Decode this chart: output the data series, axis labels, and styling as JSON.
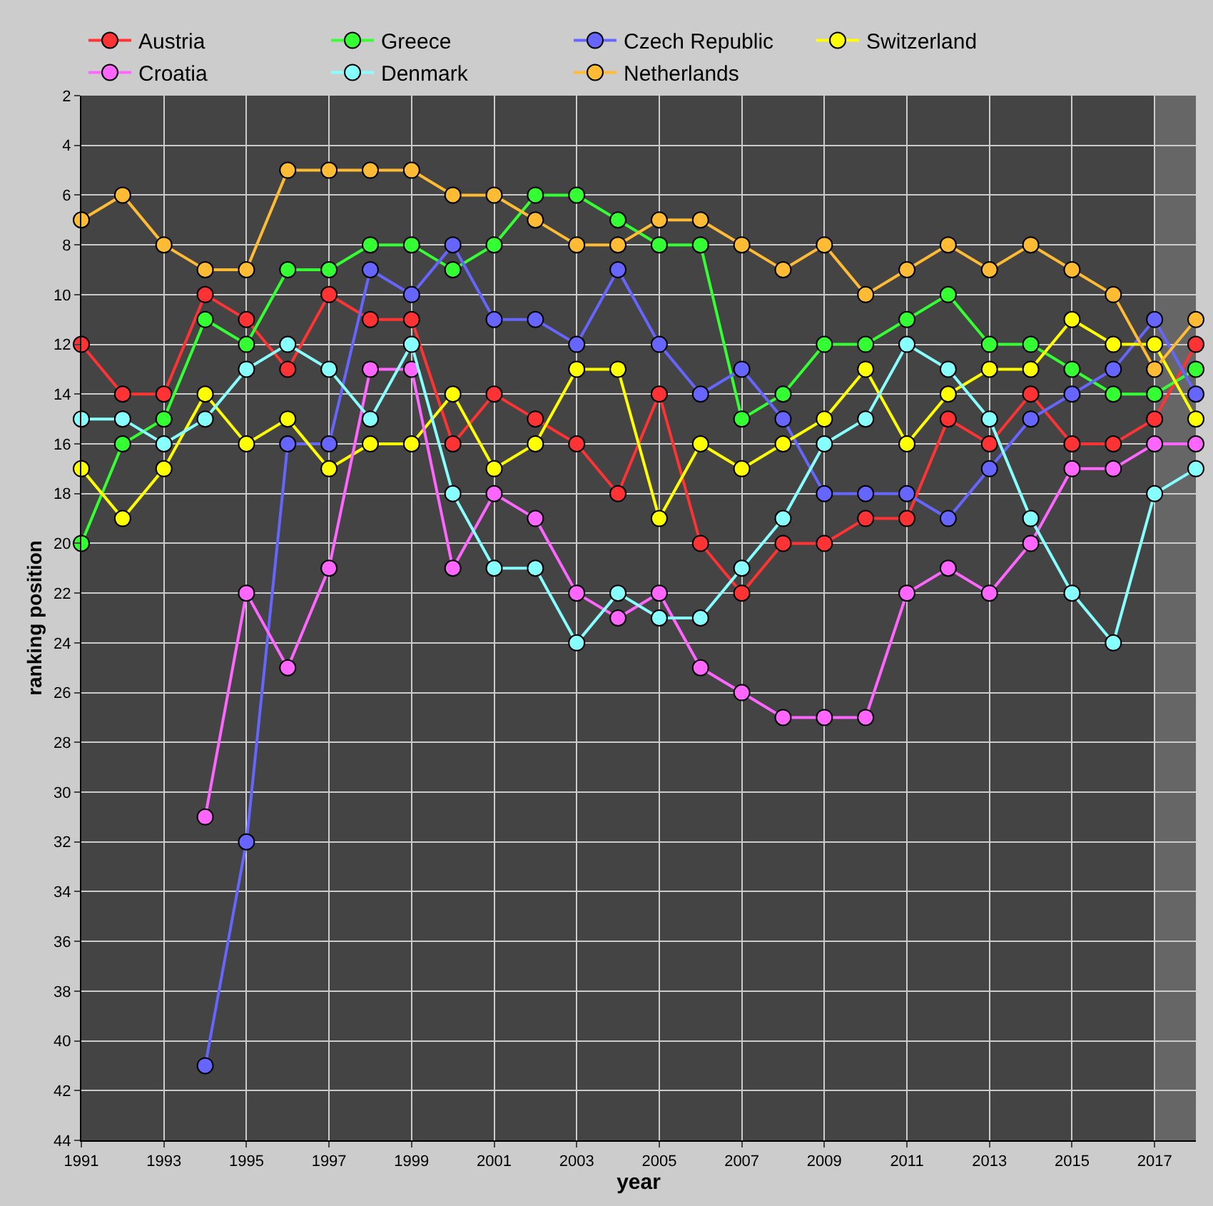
{
  "chart_data": {
    "type": "line",
    "xlabel": "year",
    "ylabel": "ranking position",
    "x": [
      1991,
      1992,
      1993,
      1994,
      1995,
      1996,
      1997,
      1998,
      1999,
      2000,
      2001,
      2002,
      2003,
      2004,
      2005,
      2006,
      2007,
      2008,
      2009,
      2010,
      2011,
      2012,
      2013,
      2014,
      2015,
      2016,
      2017,
      2018
    ],
    "series": [
      {
        "name": "Austria",
        "color": "#ff3333",
        "values": [
          12,
          14,
          14,
          10,
          11,
          13,
          10,
          11,
          11,
          16,
          14,
          15,
          16,
          18,
          14,
          20,
          22,
          20,
          20,
          19,
          19,
          15,
          16,
          14,
          16,
          16,
          15,
          12
        ]
      },
      {
        "name": "Greece",
        "color": "#33ff33",
        "values": [
          20,
          16,
          15,
          11,
          12,
          9,
          9,
          8,
          8,
          9,
          8,
          6,
          6,
          7,
          8,
          8,
          15,
          14,
          12,
          12,
          11,
          10,
          12,
          12,
          13,
          14,
          14,
          13
        ]
      },
      {
        "name": "Czech Republic",
        "color": "#6666ff",
        "values": [
          null,
          null,
          null,
          41,
          32,
          16,
          16,
          9,
          10,
          8,
          11,
          11,
          12,
          9,
          12,
          14,
          13,
          15,
          18,
          18,
          18,
          19,
          17,
          15,
          14,
          13,
          11,
          14
        ]
      },
      {
        "name": "Switzerland",
        "color": "#ffff00",
        "values": [
          17,
          19,
          17,
          14,
          16,
          15,
          17,
          16,
          16,
          14,
          17,
          16,
          13,
          13,
          19,
          16,
          17,
          16,
          15,
          13,
          16,
          14,
          13,
          13,
          11,
          12,
          12,
          15
        ]
      },
      {
        "name": "Croatia",
        "color": "#ff66ff",
        "values": [
          null,
          null,
          null,
          31,
          22,
          25,
          21,
          13,
          13,
          21,
          18,
          19,
          22,
          23,
          22,
          25,
          26,
          27,
          27,
          27,
          22,
          21,
          22,
          20,
          17,
          17,
          16,
          16
        ]
      },
      {
        "name": "Denmark",
        "color": "#88ffff",
        "values": [
          15,
          15,
          16,
          15,
          13,
          12,
          13,
          15,
          12,
          18,
          21,
          21,
          24,
          22,
          23,
          23,
          21,
          19,
          16,
          15,
          12,
          13,
          15,
          19,
          22,
          24,
          18,
          17
        ]
      },
      {
        "name": "Netherlands",
        "color": "#ffbb33",
        "values": [
          7,
          6,
          8,
          9,
          9,
          5,
          5,
          5,
          5,
          6,
          6,
          7,
          8,
          8,
          7,
          7,
          8,
          9,
          8,
          10,
          9,
          8,
          9,
          8,
          9,
          10,
          13,
          11
        ]
      }
    ],
    "xlim": [
      1991,
      2018
    ],
    "xticks": [
      1991,
      1993,
      1995,
      1997,
      1999,
      2001,
      2003,
      2005,
      2007,
      2009,
      2011,
      2013,
      2015,
      2017
    ],
    "ylim": [
      44,
      2
    ],
    "yticks": [
      2,
      4,
      6,
      8,
      10,
      12,
      14,
      16,
      18,
      20,
      22,
      24,
      26,
      28,
      30,
      32,
      34,
      36,
      38,
      40,
      42,
      44
    ],
    "bands": [
      {
        "axis": "x",
        "from": 2017,
        "to": 2018,
        "color": "#666666"
      }
    ],
    "grid": true,
    "legend": "top",
    "marker": "circle",
    "line_style": "solid"
  }
}
